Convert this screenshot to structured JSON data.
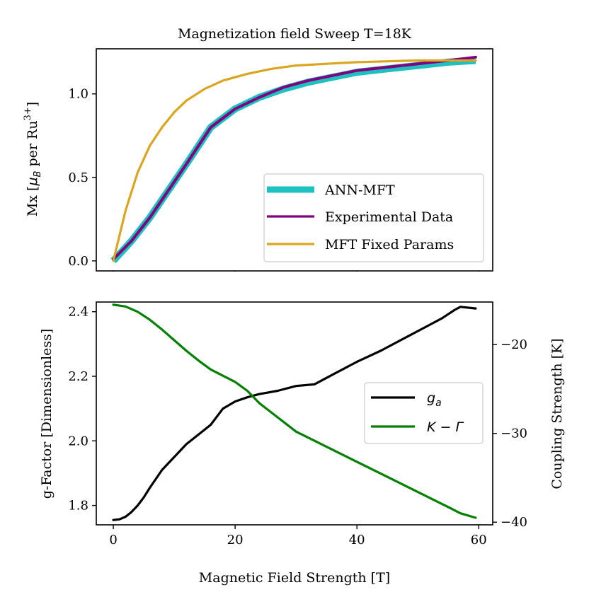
{
  "chart_data": [
    {
      "type": "line",
      "title": "Magnetization field Sweep T=18K",
      "xlabel": "",
      "ylabel": "Mx [μB per Ru3+]",
      "ylabel_parts": {
        "prefix": "Mx [",
        "mu": "μ",
        "mu_sub": "B",
        "mid": " per Ru",
        "sup": "3+",
        "suffix": "]"
      },
      "xlim": [
        -2.8,
        62.3
      ],
      "ylim": [
        -0.06,
        1.27
      ],
      "xticks": [
        0,
        20,
        40,
        60
      ],
      "yticks": [
        0.0,
        0.5,
        1.0
      ],
      "ytick_labels": [
        "0.0",
        "0.5",
        "1.0"
      ],
      "legend_position": "lower-right",
      "series": [
        {
          "name": "ANN-MFT",
          "color": "#1fc0c0",
          "x": [
            0,
            3,
            6,
            9,
            12,
            16,
            20,
            24,
            28,
            32,
            36,
            40,
            45,
            50,
            55,
            59.5
          ],
          "y": [
            0.0,
            0.12,
            0.26,
            0.42,
            0.58,
            0.8,
            0.91,
            0.98,
            1.03,
            1.07,
            1.1,
            1.13,
            1.15,
            1.17,
            1.19,
            1.2
          ]
        },
        {
          "name": "Experimental Data",
          "color": "#800080",
          "x": [
            0,
            3,
            6,
            9,
            12,
            16,
            20,
            24,
            28,
            32,
            36,
            40,
            45,
            50,
            55,
            59.5
          ],
          "y": [
            0.01,
            0.12,
            0.26,
            0.42,
            0.58,
            0.8,
            0.91,
            0.98,
            1.04,
            1.08,
            1.11,
            1.14,
            1.16,
            1.18,
            1.2,
            1.22
          ]
        },
        {
          "name": "MFT Fixed Params",
          "color": "#daa520",
          "x": [
            0,
            2,
            4,
            6,
            8,
            10,
            12,
            15,
            18,
            22,
            26,
            30,
            35,
            40,
            45,
            50,
            55,
            59.5
          ],
          "y": [
            0.0,
            0.3,
            0.53,
            0.69,
            0.8,
            0.89,
            0.96,
            1.03,
            1.08,
            1.12,
            1.15,
            1.17,
            1.18,
            1.19,
            1.195,
            1.2,
            1.2,
            1.2
          ]
        }
      ]
    },
    {
      "type": "line",
      "title": "",
      "xlabel": "Magnetic Field Strength [T]",
      "ylabel": "g-Factor [Dimensionless]",
      "y2label": "Coupling Strength [K]",
      "xlim": [
        -2.8,
        62.3
      ],
      "xticks": [
        0,
        20,
        40,
        60
      ],
      "xtick_labels": [
        "0",
        "20",
        "40",
        "60"
      ],
      "ylim": [
        1.74,
        2.43
      ],
      "yticks": [
        1.8,
        2.0,
        2.2,
        2.4
      ],
      "ytick_labels": [
        "1.8",
        "2.0",
        "2.2",
        "2.4"
      ],
      "y2lim": [
        -40.3,
        -15.2
      ],
      "y2ticks": [
        -40,
        -30,
        -20
      ],
      "y2tick_labels": [
        "−40",
        "−30",
        "−20"
      ],
      "legend_position": "center-right",
      "series": [
        {
          "name": "g",
          "name_sub": "a",
          "axis": "left",
          "color": "#000000",
          "x": [
            0,
            1,
            2,
            3,
            4,
            5,
            6,
            8,
            10,
            12,
            14,
            16,
            18,
            20,
            22,
            24,
            27,
            30,
            33,
            36,
            40,
            44,
            48,
            52,
            54,
            56,
            57,
            59.5
          ],
          "y": [
            1.755,
            1.757,
            1.765,
            1.78,
            1.8,
            1.825,
            1.855,
            1.91,
            1.95,
            1.99,
            2.02,
            2.05,
            2.1,
            2.122,
            2.135,
            2.145,
            2.155,
            2.17,
            2.175,
            2.205,
            2.245,
            2.28,
            2.32,
            2.36,
            2.38,
            2.405,
            2.415,
            2.41
          ]
        },
        {
          "name": "K − Γ",
          "axis": "right",
          "color": "#008000",
          "x": [
            0,
            2,
            4,
            6,
            8,
            10,
            12,
            14,
            16,
            18,
            20,
            22,
            24,
            27,
            30,
            35,
            40,
            45,
            50,
            55,
            57,
            59.5
          ],
          "y": [
            -15.5,
            -15.7,
            -16.3,
            -17.2,
            -18.3,
            -19.5,
            -20.7,
            -21.8,
            -22.8,
            -23.5,
            -24.2,
            -25.2,
            -26.6,
            -28.2,
            -29.8,
            -31.5,
            -33.2,
            -34.9,
            -36.6,
            -38.3,
            -39.0,
            -39.5
          ]
        }
      ]
    }
  ]
}
